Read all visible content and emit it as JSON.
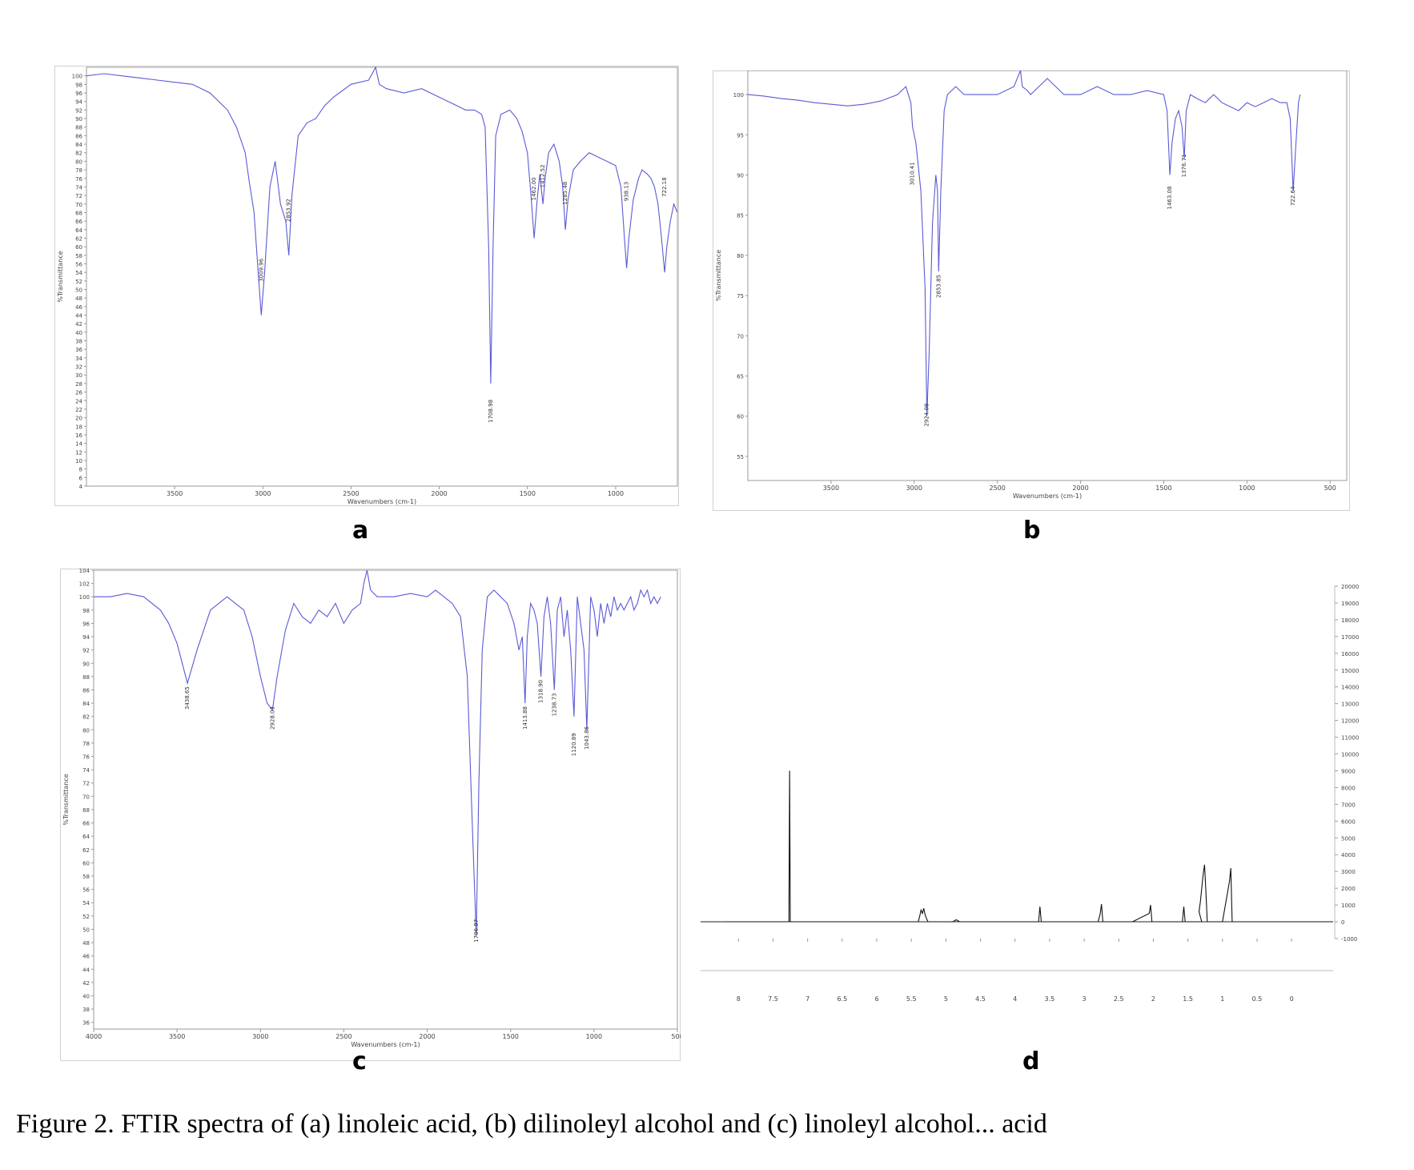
{
  "panel_labels": [
    "a",
    "b",
    "c",
    "d"
  ],
  "caption": "Figure 2. FTIR spectra of (a) linoleic acid, (b) dilinoleyl alcohol and (c) linoleyl alcohol... acid",
  "colors": {
    "ir_line": "#5a5ad6",
    "nmr_line": "#111111",
    "frame": "#999999",
    "axis_text": "#444444"
  },
  "chart_data": [
    {
      "type": "line",
      "panel": "a",
      "xlabel": "Wavenumbers (cm-1)",
      "ylabel": "%Transmittance",
      "xlim": [
        4000,
        650
      ],
      "ylim": [
        4,
        102
      ],
      "xticks": [
        3500,
        3000,
        2500,
        2000,
        1500,
        1000
      ],
      "yticks": [
        4,
        6,
        8,
        10,
        12,
        14,
        16,
        18,
        20,
        22,
        24,
        26,
        28,
        30,
        32,
        34,
        36,
        38,
        40,
        42,
        44,
        46,
        48,
        50,
        52,
        54,
        56,
        58,
        60,
        62,
        64,
        66,
        68,
        70,
        72,
        74,
        76,
        78,
        80,
        82,
        84,
        86,
        88,
        90,
        92,
        94,
        96,
        98,
        100
      ],
      "annotations": [
        {
          "x": 3009,
          "y": 58,
          "text": "3009.96"
        },
        {
          "x": 2853,
          "y": 72,
          "text": "2853.92"
        },
        {
          "x": 1708,
          "y": 25,
          "text": "1708.98"
        },
        {
          "x": 1462,
          "y": 77,
          "text": "1462.00"
        },
        {
          "x": 1412,
          "y": 80,
          "text": "1412.52"
        },
        {
          "x": 1285,
          "y": 76,
          "text": "1285.48"
        },
        {
          "x": 938,
          "y": 76,
          "text": "938.13"
        },
        {
          "x": 722,
          "y": 77,
          "text": "722.18"
        }
      ],
      "series": [
        {
          "x": [
            4000,
            3900,
            3800,
            3700,
            3600,
            3500,
            3400,
            3300,
            3200,
            3150,
            3100,
            3080,
            3050,
            3030,
            3009,
            2990,
            2960,
            2930,
            2900,
            2870,
            2853,
            2835,
            2800,
            2750,
            2700,
            2650,
            2600,
            2500,
            2400,
            2361,
            2340,
            2300,
            2200,
            2100,
            2000,
            1900,
            1850,
            1800,
            1760,
            1740,
            1720,
            1708,
            1695,
            1680,
            1650,
            1600,
            1560,
            1530,
            1500,
            1480,
            1462,
            1445,
            1430,
            1412,
            1400,
            1380,
            1350,
            1320,
            1300,
            1285,
            1270,
            1240,
            1200,
            1150,
            1100,
            1050,
            1000,
            970,
            950,
            938,
            925,
            900,
            870,
            850,
            820,
            800,
            780,
            760,
            740,
            722,
            710,
            690,
            670,
            650
          ],
          "y": [
            100,
            100.5,
            100,
            99.5,
            99,
            98.5,
            98,
            96,
            92,
            88,
            82,
            76,
            68,
            56,
            44,
            54,
            74,
            80,
            70,
            66,
            58,
            72,
            86,
            89,
            90,
            93,
            95,
            98,
            99,
            102,
            98,
            97,
            96,
            97,
            95,
            93,
            92,
            92,
            91,
            88,
            60,
            28,
            60,
            86,
            91,
            92,
            90,
            87,
            82,
            72,
            62,
            71,
            77,
            70,
            76,
            82,
            84,
            80,
            74,
            64,
            71,
            78,
            80,
            82,
            81,
            80,
            79,
            74,
            62,
            55,
            62,
            71,
            76,
            78,
            77,
            76,
            74,
            70,
            62,
            54,
            60,
            66,
            70,
            68
          ]
        }
      ]
    },
    {
      "type": "line",
      "panel": "b",
      "xlabel": "Wavenumbers (cm-1)",
      "ylabel": "%Transmittance",
      "xlim": [
        4000,
        400
      ],
      "ylim": [
        52,
        103
      ],
      "xticks": [
        3500,
        3000,
        2500,
        2000,
        1500,
        1000,
        500
      ],
      "yticks": [
        55,
        60,
        65,
        70,
        75,
        80,
        85,
        90,
        95,
        100
      ],
      "annotations": [
        {
          "x": 3010,
          "y": 92,
          "text": "3010.41"
        },
        {
          "x": 2924,
          "y": 62,
          "text": "2924.08"
        },
        {
          "x": 2853,
          "y": 78,
          "text": "2853.85"
        },
        {
          "x": 1463,
          "y": 89,
          "text": "1463.08"
        },
        {
          "x": 1377,
          "y": 93,
          "text": "1376.71"
        },
        {
          "x": 722,
          "y": 89,
          "text": "722.64"
        }
      ],
      "series": [
        {
          "x": [
            4000,
            3900,
            3800,
            3700,
            3600,
            3500,
            3400,
            3300,
            3200,
            3100,
            3050,
            3020,
            3010,
            2990,
            2960,
            2935,
            2924,
            2910,
            2890,
            2870,
            2860,
            2853,
            2840,
            2820,
            2800,
            2750,
            2700,
            2600,
            2500,
            2400,
            2361,
            2350,
            2320,
            2300,
            2200,
            2100,
            2000,
            1900,
            1800,
            1700,
            1600,
            1500,
            1480,
            1463,
            1450,
            1430,
            1410,
            1390,
            1377,
            1365,
            1340,
            1300,
            1250,
            1200,
            1150,
            1100,
            1050,
            1000,
            950,
            900,
            850,
            800,
            760,
            740,
            722,
            705,
            690,
            680
          ],
          "y": [
            100,
            99.8,
            99.5,
            99.3,
            99.0,
            98.8,
            98.6,
            98.8,
            99.2,
            100,
            101,
            99,
            96,
            94,
            88,
            76,
            60,
            68,
            84,
            90,
            88,
            78,
            88,
            98,
            100,
            101,
            100,
            100,
            100,
            101,
            103,
            101,
            100.5,
            100,
            102,
            100,
            100,
            101,
            100,
            100,
            100.5,
            100,
            98,
            90,
            94,
            97,
            98,
            96,
            92,
            98,
            100,
            99.5,
            99,
            100,
            99,
            98.5,
            98,
            99,
            98.5,
            99,
            99.5,
            99,
            99,
            97,
            88,
            94,
            99,
            100
          ]
        }
      ]
    },
    {
      "type": "line",
      "panel": "c",
      "xlabel": "Wavenumbers (cm-1)",
      "ylabel": "%Transmittance",
      "xlim": [
        4000,
        500
      ],
      "ylim": [
        35,
        104
      ],
      "xticks": [
        4000,
        3500,
        3000,
        2500,
        2000,
        1500,
        1000,
        500
      ],
      "yticks": [
        36,
        38,
        40,
        42,
        44,
        46,
        48,
        50,
        52,
        54,
        56,
        58,
        60,
        62,
        64,
        66,
        68,
        70,
        72,
        74,
        76,
        78,
        80,
        82,
        84,
        86,
        88,
        90,
        92,
        94,
        96,
        98,
        100,
        102,
        104
      ],
      "annotations": [
        {
          "x": 3438,
          "y": 87,
          "text": "3438.65"
        },
        {
          "x": 2928,
          "y": 84,
          "text": "2928.03"
        },
        {
          "x": 1706,
          "y": 52,
          "text": "1706.87"
        },
        {
          "x": 1413,
          "y": 84,
          "text": "1413.88"
        },
        {
          "x": 1318,
          "y": 88,
          "text": "1318.90"
        },
        {
          "x": 1238,
          "y": 86,
          "text": "1238.73"
        },
        {
          "x": 1120,
          "y": 80,
          "text": "1120.89"
        },
        {
          "x": 1043,
          "y": 81,
          "text": "1043.86"
        }
      ],
      "series": [
        {
          "x": [
            4000,
            3900,
            3800,
            3700,
            3600,
            3550,
            3500,
            3438,
            3380,
            3300,
            3200,
            3100,
            3050,
            3000,
            2960,
            2928,
            2900,
            2850,
            2800,
            2750,
            2700,
            2650,
            2600,
            2550,
            2500,
            2450,
            2400,
            2380,
            2361,
            2340,
            2300,
            2200,
            2100,
            2000,
            1950,
            1900,
            1850,
            1800,
            1760,
            1730,
            1706,
            1690,
            1670,
            1640,
            1600,
            1560,
            1520,
            1480,
            1450,
            1430,
            1413,
            1400,
            1380,
            1360,
            1340,
            1318,
            1300,
            1280,
            1260,
            1238,
            1220,
            1200,
            1180,
            1160,
            1140,
            1120,
            1100,
            1080,
            1060,
            1043,
            1020,
            1000,
            980,
            960,
            940,
            920,
            900,
            880,
            860,
            840,
            820,
            800,
            780,
            760,
            740,
            720,
            700,
            680,
            660,
            640,
            620,
            600
          ],
          "y": [
            100,
            100,
            100.5,
            100,
            98,
            96,
            93,
            87,
            92,
            98,
            100,
            98,
            94,
            88,
            84,
            83,
            88,
            95,
            99,
            97,
            96,
            98,
            97,
            99,
            96,
            98,
            99,
            102,
            104,
            101,
            100,
            100,
            100.5,
            100,
            101,
            100,
            99,
            97,
            88,
            66,
            49,
            72,
            92,
            100,
            101,
            100,
            99,
            96,
            92,
            94,
            84,
            94,
            99,
            98,
            96,
            88,
            97,
            100,
            96,
            86,
            98,
            100,
            94,
            98,
            92,
            82,
            100,
            96,
            92,
            80,
            100,
            98,
            94,
            99,
            96,
            99,
            97,
            100,
            98,
            99,
            98,
            99,
            100,
            98,
            99,
            101,
            100,
            101,
            99,
            100,
            99,
            100
          ]
        }
      ]
    },
    {
      "type": "line",
      "panel": "d",
      "xlabel": "",
      "ylabel": "",
      "xlim": [
        8.2,
        -0.6
      ],
      "ylim": [
        -1000,
        20000
      ],
      "xticks": [
        8.0,
        7.5,
        7.0,
        6.5,
        6.0,
        5.5,
        5.0,
        4.5,
        4.0,
        3.5,
        3.0,
        2.5,
        2.0,
        1.5,
        1.0,
        0.5,
        0.0
      ],
      "yticks": [
        -1000,
        0,
        1000,
        2000,
        3000,
        4000,
        5000,
        6000,
        7000,
        8000,
        9000,
        10000,
        11000,
        12000,
        13000,
        14000,
        15000,
        16000,
        17000,
        18000,
        19000,
        20000
      ],
      "series": [
        {
          "x": [
            8.2,
            7.27,
            7.26,
            7.25,
            7.24,
            5.4,
            5.38,
            5.36,
            5.34,
            5.32,
            5.3,
            5.28,
            5.26,
            4.9,
            4.85,
            4.8,
            3.66,
            3.64,
            3.62,
            2.8,
            2.77,
            2.75,
            2.73,
            2.3,
            2.06,
            2.04,
            2.02,
            1.58,
            1.56,
            1.54,
            1.3,
            1.34,
            1.32,
            1.28,
            1.26,
            1.24,
            1.22,
            1.0,
            0.9,
            0.88,
            0.86,
            0.6,
            0.0,
            -0.6
          ],
          "y": [
            0,
            0,
            9000,
            0,
            0,
            0,
            300,
            700,
            500,
            800,
            400,
            200,
            0,
            0,
            120,
            0,
            0,
            900,
            0,
            0,
            450,
            1050,
            0,
            0,
            500,
            1000,
            0,
            0,
            900,
            0,
            0,
            600,
            1200,
            2800,
            3400,
            1800,
            0,
            0,
            2400,
            3200,
            0,
            0,
            0,
            0
          ]
        }
      ]
    }
  ]
}
